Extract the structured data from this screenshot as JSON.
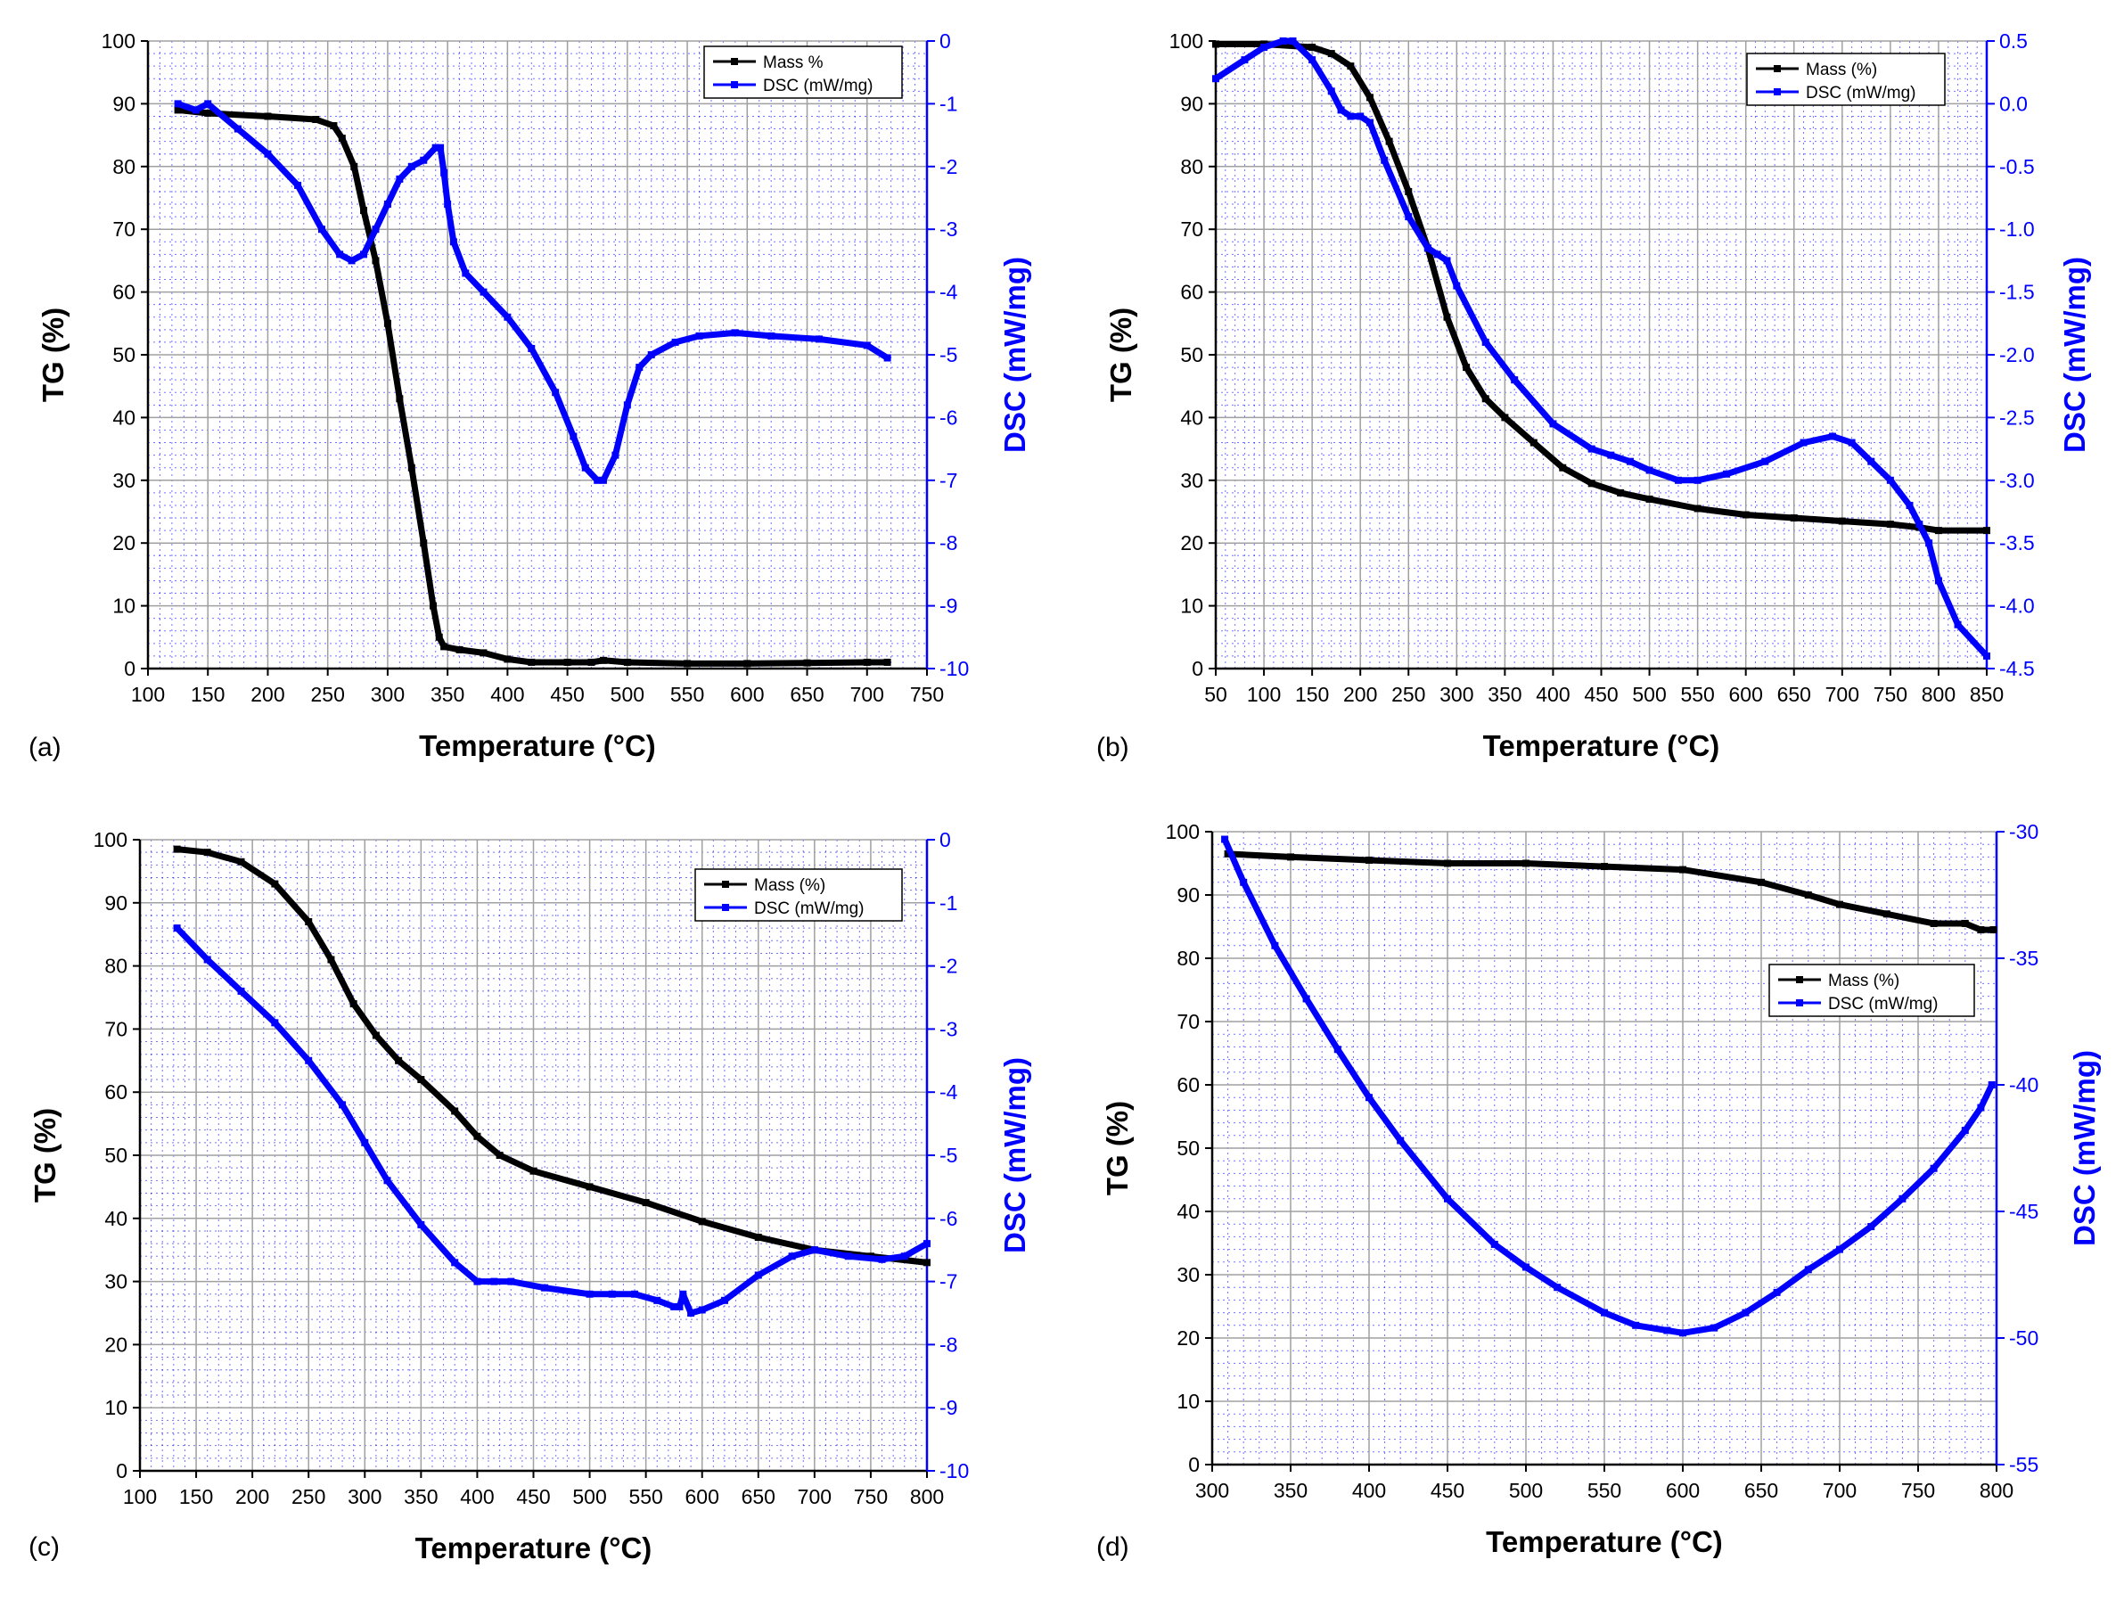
{
  "colors": {
    "mass": "#000000",
    "dsc": "#0000ff",
    "grid_major": "#a0a0a0",
    "grid_minor": "#0000ff"
  },
  "chart_data": [
    {
      "type": "line",
      "panel_label": "(a)",
      "xlabel": "Temperature (°C)",
      "ylabel_left": "TG (%)",
      "ylabel_right": "DSC (mW/mg)",
      "xlim": [
        100,
        750
      ],
      "ylim_left": [
        0,
        100
      ],
      "ylim_right": [
        -10,
        0
      ],
      "xticks": [
        100,
        150,
        200,
        250,
        300,
        350,
        400,
        450,
        500,
        550,
        600,
        650,
        700,
        750
      ],
      "yticks_left": [
        0,
        10,
        20,
        30,
        40,
        50,
        60,
        70,
        80,
        90,
        100
      ],
      "yticks_right": [
        -10,
        -9,
        -8,
        -7,
        -6,
        -5,
        -4,
        -3,
        -2,
        -1,
        0
      ],
      "legend_position": "top-right",
      "series": [
        {
          "name": "Mass %",
          "axis": "left",
          "x": [
            125,
            150,
            200,
            240,
            255,
            262,
            272,
            280,
            290,
            300,
            310,
            320,
            330,
            338,
            343,
            347,
            360,
            380,
            400,
            420,
            450,
            470,
            480,
            500,
            550,
            600,
            650,
            700,
            717
          ],
          "y": [
            89,
            88.5,
            88,
            87.5,
            86.5,
            84.5,
            80,
            73,
            65,
            55,
            43,
            32,
            20,
            10,
            5,
            3.5,
            3,
            2.5,
            1.5,
            1,
            1,
            1,
            1.3,
            1,
            0.8,
            0.8,
            0.9,
            1,
            1
          ]
        },
        {
          "name": "DSC (mW/mg)",
          "axis": "right",
          "x": [
            125,
            140,
            150,
            175,
            200,
            225,
            245,
            260,
            270,
            280,
            290,
            300,
            310,
            320,
            330,
            340,
            344,
            347,
            350,
            355,
            365,
            380,
            400,
            420,
            440,
            455,
            465,
            475,
            480,
            490,
            500,
            510,
            520,
            540,
            560,
            590,
            620,
            660,
            700,
            717
          ],
          "y": [
            -1.0,
            -1.1,
            -1.0,
            -1.4,
            -1.8,
            -2.3,
            -3.0,
            -3.4,
            -3.5,
            -3.4,
            -3.0,
            -2.6,
            -2.2,
            -2.0,
            -1.9,
            -1.7,
            -1.7,
            -2.1,
            -2.6,
            -3.2,
            -3.7,
            -4.0,
            -4.4,
            -4.9,
            -5.6,
            -6.3,
            -6.8,
            -7.0,
            -7.0,
            -6.6,
            -5.8,
            -5.2,
            -5.0,
            -4.8,
            -4.7,
            -4.65,
            -4.7,
            -4.75,
            -4.85,
            -5.05
          ]
        }
      ]
    },
    {
      "type": "line",
      "panel_label": "(b)",
      "xlabel": "Temperature (°C)",
      "ylabel_left": "TG (%)",
      "ylabel_right": "DSC (mW/mg)",
      "xlim": [
        50,
        850
      ],
      "ylim_left": [
        0,
        100
      ],
      "ylim_right": [
        -4.5,
        0.5
      ],
      "xticks": [
        50,
        100,
        150,
        200,
        250,
        300,
        350,
        400,
        450,
        500,
        550,
        600,
        650,
        700,
        750,
        800,
        850
      ],
      "yticks_left": [
        0,
        10,
        20,
        30,
        40,
        50,
        60,
        70,
        80,
        90,
        100
      ],
      "yticks_right": [
        -4.5,
        -4.0,
        -3.5,
        -3.0,
        -2.5,
        -2.0,
        -1.5,
        -1.0,
        -0.5,
        0.0,
        0.5
      ],
      "ytick_labels_right": [
        "-4.5",
        "-4.0",
        "-3.5",
        "-3.0",
        "-2.5",
        "-2.0",
        "-1.5",
        "-1.0",
        "-0.5",
        "0.0",
        "0.5"
      ],
      "legend_position": "top-right",
      "series": [
        {
          "name": "Mass (%)",
          "axis": "left",
          "x": [
            50,
            100,
            150,
            170,
            190,
            210,
            230,
            250,
            270,
            290,
            310,
            330,
            350,
            380,
            410,
            440,
            470,
            500,
            550,
            600,
            650,
            700,
            750,
            780,
            800,
            850
          ],
          "y": [
            99.5,
            99.5,
            99,
            98,
            96,
            91,
            84,
            76,
            67,
            56,
            48,
            43,
            40,
            36,
            32,
            29.5,
            28,
            27,
            25.5,
            24.5,
            24,
            23.5,
            23,
            22.5,
            22,
            22
          ]
        },
        {
          "name": "DSC (mW/mg)",
          "axis": "right",
          "x": [
            50,
            80,
            100,
            120,
            130,
            150,
            170,
            180,
            190,
            200,
            210,
            225,
            250,
            270,
            280,
            290,
            300,
            330,
            360,
            400,
            440,
            460,
            480,
            500,
            530,
            550,
            580,
            620,
            660,
            690,
            710,
            730,
            750,
            770,
            780,
            790,
            800,
            820,
            850
          ],
          "y": [
            0.2,
            0.35,
            0.45,
            0.5,
            0.5,
            0.35,
            0.1,
            -0.05,
            -0.1,
            -0.1,
            -0.15,
            -0.45,
            -0.9,
            -1.15,
            -1.2,
            -1.25,
            -1.45,
            -1.9,
            -2.2,
            -2.55,
            -2.75,
            -2.8,
            -2.85,
            -2.92,
            -3.0,
            -3.0,
            -2.95,
            -2.85,
            -2.7,
            -2.65,
            -2.7,
            -2.85,
            -3.0,
            -3.2,
            -3.35,
            -3.5,
            -3.8,
            -4.15,
            -4.4
          ]
        }
      ]
    },
    {
      "type": "line",
      "panel_label": "(c)",
      "xlabel": "Temperature (°C)",
      "ylabel_left": "TG (%)",
      "ylabel_right": "DSC (mW/mg)",
      "xlim": [
        100,
        800
      ],
      "ylim_left": [
        0,
        100
      ],
      "ylim_right": [
        -10,
        0
      ],
      "xticks": [
        100,
        150,
        200,
        250,
        300,
        350,
        400,
        450,
        500,
        550,
        600,
        650,
        700,
        750,
        800
      ],
      "yticks_left": [
        0,
        10,
        20,
        30,
        40,
        50,
        60,
        70,
        80,
        90,
        100
      ],
      "yticks_right": [
        -10,
        -9,
        -8,
        -7,
        -6,
        -5,
        -4,
        -3,
        -2,
        -1,
        0
      ],
      "legend_position": "top-right",
      "series": [
        {
          "name": "Mass (%)",
          "axis": "left",
          "x": [
            133,
            160,
            190,
            220,
            250,
            270,
            290,
            310,
            330,
            350,
            380,
            400,
            420,
            450,
            500,
            550,
            600,
            650,
            700,
            750,
            800
          ],
          "y": [
            98.5,
            98,
            96.5,
            93,
            87,
            81,
            74,
            69,
            65,
            62,
            57,
            53,
            50,
            47.5,
            45,
            42.5,
            39.5,
            37,
            35,
            34,
            33
          ]
        },
        {
          "name": "DSC (mW/mg)",
          "axis": "right",
          "x": [
            133,
            160,
            190,
            220,
            250,
            280,
            300,
            320,
            350,
            380,
            400,
            415,
            430,
            460,
            500,
            520,
            540,
            560,
            575,
            580,
            583,
            590,
            600,
            620,
            650,
            680,
            700,
            730,
            760,
            780,
            800
          ],
          "y": [
            -1.4,
            -1.9,
            -2.4,
            -2.9,
            -3.5,
            -4.2,
            -4.8,
            -5.4,
            -6.1,
            -6.7,
            -7.0,
            -7.0,
            -7.0,
            -7.1,
            -7.2,
            -7.2,
            -7.2,
            -7.3,
            -7.4,
            -7.4,
            -7.2,
            -7.5,
            -7.45,
            -7.3,
            -6.9,
            -6.6,
            -6.5,
            -6.6,
            -6.65,
            -6.6,
            -6.4
          ]
        }
      ]
    },
    {
      "type": "line",
      "panel_label": "(d)",
      "xlabel": "Temperature (°C)",
      "ylabel_left": "TG (%)",
      "ylabel_right": "DSC (mW/mg)",
      "xlim": [
        300,
        800
      ],
      "ylim_left": [
        0,
        100
      ],
      "ylim_right": [
        -55,
        -30
      ],
      "xticks": [
        300,
        350,
        400,
        450,
        500,
        550,
        600,
        650,
        700,
        750,
        800
      ],
      "yticks_left": [
        0,
        10,
        20,
        30,
        40,
        50,
        60,
        70,
        80,
        90,
        100
      ],
      "yticks_right": [
        -55,
        -50,
        -45,
        -40,
        -35,
        -30
      ],
      "legend_position": "center-right",
      "series": [
        {
          "name": "Mass (%)",
          "axis": "left",
          "x": [
            310,
            350,
            400,
            450,
            500,
            550,
            600,
            650,
            680,
            700,
            730,
            760,
            780,
            790,
            798
          ],
          "y": [
            96.5,
            96,
            95.5,
            95,
            95,
            94.5,
            94,
            92,
            90,
            88.5,
            87,
            85.5,
            85.5,
            84.5,
            84.5
          ]
        },
        {
          "name": "DSC (mW/mg)",
          "axis": "right",
          "x": [
            308,
            320,
            340,
            360,
            380,
            400,
            420,
            450,
            480,
            500,
            520,
            550,
            570,
            590,
            600,
            620,
            640,
            660,
            680,
            700,
            720,
            740,
            760,
            780,
            790,
            797
          ],
          "y": [
            -30.3,
            -32.0,
            -34.5,
            -36.6,
            -38.6,
            -40.5,
            -42.2,
            -44.5,
            -46.3,
            -47.2,
            -48.0,
            -49.0,
            -49.5,
            -49.7,
            -49.8,
            -49.6,
            -49.0,
            -48.2,
            -47.3,
            -46.5,
            -45.6,
            -44.5,
            -43.3,
            -41.8,
            -40.9,
            -40.0
          ]
        }
      ]
    }
  ]
}
